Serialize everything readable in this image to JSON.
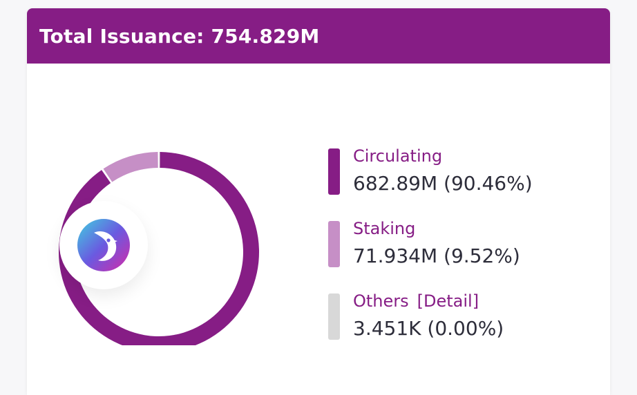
{
  "header": {
    "title": "Total Issuance: 754.829M"
  },
  "colors": {
    "primary": "#861d85",
    "staking": "#c68fc6",
    "others": "#d8d8d8",
    "label_text": "#861d85",
    "value_text": "#2d2d3a"
  },
  "chart_data": {
    "type": "pie",
    "donut": true,
    "title": "Total Issuance: 754.829M",
    "slices": [
      {
        "name": "Circulating",
        "value": 682.89,
        "percent": 90.46,
        "display": "682.89M (90.46%)",
        "color": "#861d85"
      },
      {
        "name": "Staking",
        "value": 71.934,
        "percent": 9.52,
        "display": "71.934M (9.52%)",
        "color": "#c68fc6"
      },
      {
        "name": "Others",
        "value": 0.003451,
        "percent": 0.0,
        "display": "3.451K (0.00%)",
        "color": "#d8d8d8"
      }
    ],
    "legend_position": "right"
  },
  "legend": {
    "others_detail_label": "[Detail]"
  },
  "logo": {
    "icon": "bird-logo-icon"
  }
}
